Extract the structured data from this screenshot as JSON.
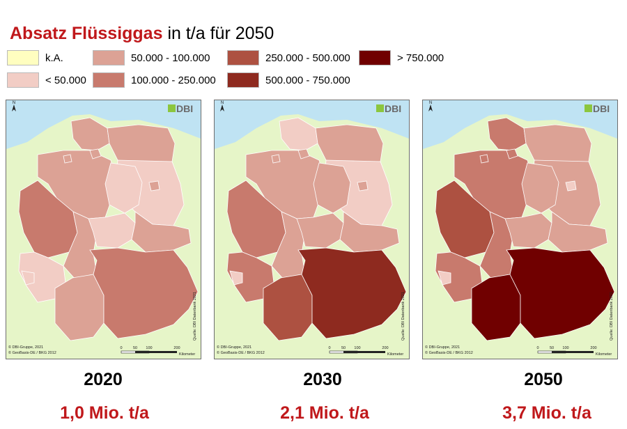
{
  "title": {
    "bold": "Absatz Flüssiggas",
    "rest": " in t/a für 2050"
  },
  "legend": [
    {
      "label": "k.A.",
      "color": "#fffec0"
    },
    {
      "label": "< 50.000",
      "color": "#f2cdc5"
    },
    {
      "label": "50.000 - 100.000",
      "color": "#dca295"
    },
    {
      "label": "100.000 - 250.000",
      "color": "#c87a6d"
    },
    {
      "label": "250.000 - 500.000",
      "color": "#ad5141"
    },
    {
      "label": "500.000 - 750.000",
      "color": "#8e2a1f"
    },
    {
      "label": "> 750.000",
      "color": "#700000"
    }
  ],
  "map_common": {
    "logo": "DBI",
    "north": "N",
    "source": "Quelle: DBI Datenbank 2021",
    "copyright1": "© DBI-Gruppe, 2021",
    "copyright2": "© GeoBasis-DE / BKG 2012",
    "scale_ticks": [
      "0",
      "50",
      "100",
      "200"
    ],
    "scale_unit": "Kilometer"
  },
  "maps": [
    {
      "year": "2020",
      "total": "1,0 Mio. t/a",
      "regions": {
        "sh": "#dca295",
        "hh": "#dca295",
        "hb": "#dca295",
        "ni": "#dca295",
        "mv": "#dca295",
        "bb": "#f2cdc5",
        "be": "#dca295",
        "st": "#f2cdc5",
        "nw": "#c87a6d",
        "he": "#dca295",
        "th": "#f2cdc5",
        "sn": "#dca295",
        "rp": "#f2cdc5",
        "sl": "#f2cdc5",
        "bw": "#dca295",
        "by": "#c87a6d"
      }
    },
    {
      "year": "2030",
      "total": "2,1 Mio. t/a",
      "regions": {
        "sh": "#f2cdc5",
        "hh": "#dca295",
        "hb": "#dca295",
        "ni": "#dca295",
        "mv": "#dca295",
        "bb": "#f2cdc5",
        "be": "#dca295",
        "st": "#dca295",
        "nw": "#c87a6d",
        "he": "#dca295",
        "th": "#dca295",
        "sn": "#dca295",
        "rp": "#c87a6d",
        "sl": "#f2cdc5",
        "bw": "#ad5141",
        "by": "#8e2a1f"
      }
    },
    {
      "year": "2050",
      "total": "3,7 Mio. t/a",
      "regions": {
        "sh": "#c87a6d",
        "hh": "#c87a6d",
        "hb": "#c87a6d",
        "ni": "#c87a6d",
        "mv": "#dca295",
        "bb": "#dca295",
        "be": "#f2cdc5",
        "st": "#dca295",
        "nw": "#ad5141",
        "he": "#c87a6d",
        "th": "#dca295",
        "sn": "#dca295",
        "rp": "#c87a6d",
        "sl": "#f2cdc5",
        "bw": "#700000",
        "by": "#700000"
      }
    }
  ]
}
